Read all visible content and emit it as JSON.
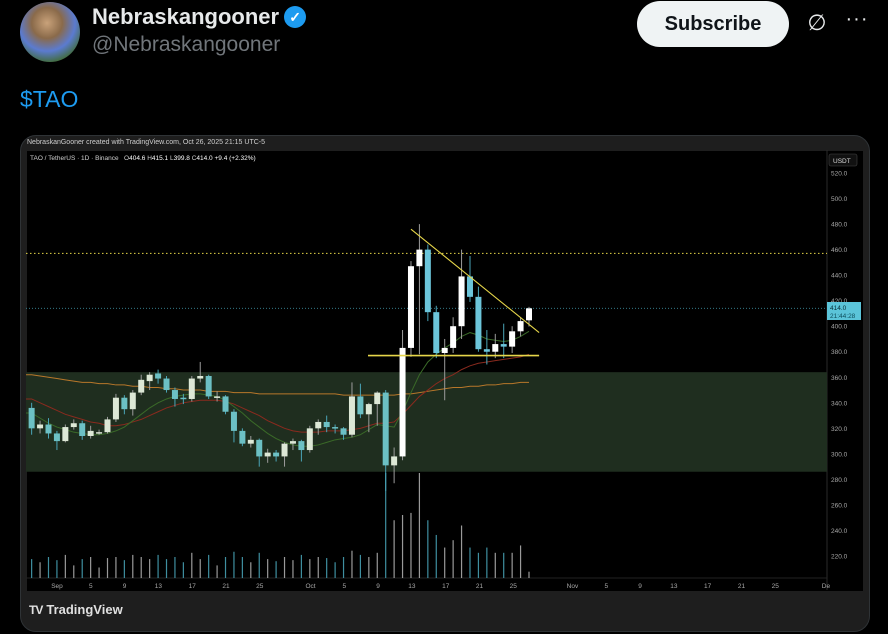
{
  "post": {
    "author_name": "Nebraskangooner",
    "verified": true,
    "handle": "@Nebraskangooner",
    "subscribe_label": "Subscribe",
    "text": "$TAO",
    "icons": {
      "verified": "verified-badge-icon",
      "grok": "grok-icon",
      "more": "more-icon"
    }
  },
  "card": {
    "credit": "NebraskanGooner created with TradingView.com, Oct 26, 2025 21:15 UTC-5",
    "brand": "TradingView"
  },
  "chart_data": {
    "type": "candlestick",
    "symbol_line": "TAO / TetherUS · 1D · Binance",
    "ohlc_readout": {
      "o": "404.6",
      "h": "415.1",
      "l": "399.8",
      "c": "414.0",
      "change": "+9.4 (+2.32%)"
    },
    "currency_label": "USDT",
    "last_price_label": "414.0",
    "countdown_label": "21:44:28",
    "ylim": [
      212,
      528
    ],
    "y_ticks": [
      "520.0",
      "500.0",
      "480.0",
      "460.0",
      "440.0",
      "420.0",
      "400.0",
      "380.0",
      "360.0",
      "340.0",
      "320.0",
      "300.0",
      "280.0",
      "260.0",
      "240.0",
      "220.0"
    ],
    "x_ticks": [
      "Sep",
      "5",
      "9",
      "13",
      "17",
      "21",
      "25",
      "Oct",
      "5",
      "9",
      "13",
      "17",
      "21",
      "25",
      "Nov",
      "5",
      "9",
      "13",
      "17",
      "21",
      "25",
      "De"
    ],
    "colors": {
      "up": "#ffffff",
      "down": "#6cc5da",
      "zone": "#1f2e1f",
      "trendlines": "#e6d64a",
      "last_price": "#5bc4d9"
    },
    "zone": [
      286,
      364
    ],
    "support_level": 377,
    "dotted_resistance": 457,
    "candles": [
      [
        336,
        340,
        315,
        320
      ],
      [
        320,
        326,
        316,
        323
      ],
      [
        323,
        328,
        312,
        316
      ],
      [
        316,
        318,
        303,
        310
      ],
      [
        310,
        323,
        309,
        321
      ],
      [
        321,
        327,
        319,
        324
      ],
      [
        324,
        326,
        311,
        314
      ],
      [
        314,
        322,
        312,
        318
      ],
      [
        317,
        319,
        315,
        317
      ],
      [
        317,
        329,
        316,
        327
      ],
      [
        327,
        347,
        325,
        344
      ],
      [
        344,
        346,
        331,
        335
      ],
      [
        335,
        350,
        330,
        348
      ],
      [
        348,
        362,
        346,
        358
      ],
      [
        357,
        364,
        350,
        362
      ],
      [
        363,
        366,
        355,
        359
      ],
      [
        359,
        361,
        348,
        350
      ],
      [
        350,
        352,
        337,
        343
      ],
      [
        344,
        347,
        339,
        343
      ],
      [
        343,
        361,
        341,
        359
      ],
      [
        359,
        372,
        356,
        361
      ],
      [
        361,
        362,
        343,
        345
      ],
      [
        345,
        349,
        341,
        345
      ],
      [
        345,
        346,
        331,
        333
      ],
      [
        333,
        335,
        309,
        318
      ],
      [
        318,
        320,
        306,
        308
      ],
      [
        308,
        314,
        305,
        311
      ],
      [
        311,
        312,
        290,
        298
      ],
      [
        298,
        304,
        293,
        301
      ],
      [
        301,
        303,
        294,
        298
      ],
      [
        298,
        309,
        290,
        308
      ],
      [
        308,
        312,
        303,
        310
      ],
      [
        310,
        311,
        294,
        303
      ],
      [
        303,
        322,
        301,
        320
      ],
      [
        320,
        327,
        315,
        325
      ],
      [
        325,
        330,
        317,
        321
      ],
      [
        321,
        323,
        316,
        320
      ],
      [
        320,
        321,
        311,
        315
      ],
      [
        315,
        356,
        313,
        345
      ],
      [
        345,
        355,
        328,
        331
      ],
      [
        331,
        340,
        317,
        339
      ],
      [
        339,
        349,
        322,
        348
      ],
      [
        348,
        350,
        271,
        291
      ],
      [
        291,
        305,
        277,
        298
      ],
      [
        298,
        397,
        295,
        383
      ],
      [
        383,
        451,
        376,
        447
      ],
      [
        447,
        480,
        378,
        460
      ],
      [
        460,
        464,
        404,
        411
      ],
      [
        411,
        416,
        375,
        379
      ],
      [
        379,
        390,
        342,
        383
      ],
      [
        383,
        407,
        379,
        400
      ],
      [
        400,
        460,
        390,
        439
      ],
      [
        439,
        455,
        419,
        423
      ],
      [
        423,
        431,
        380,
        382
      ],
      [
        382,
        397,
        370,
        380
      ],
      [
        380,
        394,
        375,
        386
      ],
      [
        386,
        402,
        375,
        384
      ],
      [
        384,
        400,
        379,
        396
      ],
      [
        396,
        407,
        392,
        404
      ],
      [
        404.6,
        415.1,
        399.8,
        414.0
      ]
    ],
    "volume_relative": [
      0.18,
      0.15,
      0.2,
      0.17,
      0.22,
      0.12,
      0.18,
      0.2,
      0.1,
      0.19,
      0.2,
      0.17,
      0.22,
      0.2,
      0.18,
      0.22,
      0.18,
      0.2,
      0.15,
      0.24,
      0.18,
      0.22,
      0.12,
      0.2,
      0.25,
      0.2,
      0.15,
      0.24,
      0.18,
      0.16,
      0.2,
      0.17,
      0.22,
      0.18,
      0.2,
      0.19,
      0.15,
      0.2,
      0.26,
      0.22,
      0.2,
      0.24,
      1.0,
      0.55,
      0.6,
      0.62,
      1.0,
      0.55,
      0.41,
      0.29,
      0.36,
      0.5,
      0.29,
      0.24,
      0.29,
      0.24,
      0.24,
      0.24,
      0.31,
      0.06
    ],
    "moving_averages": [
      {
        "color": "#b8772a",
        "values": [
          362,
          361,
          360,
          359,
          358,
          357,
          356,
          356,
          355,
          355,
          354,
          354,
          353,
          353,
          352,
          352,
          351,
          351,
          350,
          350,
          350,
          349,
          349,
          349,
          348,
          348,
          348,
          347,
          347,
          347,
          347,
          347,
          347,
          347,
          347,
          347,
          347,
          346,
          346,
          346,
          346,
          346,
          346,
          346,
          347,
          347,
          348,
          349,
          350,
          351,
          352,
          352,
          353,
          353,
          354,
          354,
          355,
          355,
          356,
          356
        ]
      },
      {
        "color": "#8a2a1e",
        "values": [
          343,
          340,
          337,
          334,
          331,
          329,
          327,
          325,
          324,
          322,
          322,
          323,
          325,
          327,
          330,
          333,
          336,
          338,
          340,
          341,
          342,
          342,
          342,
          341,
          339,
          336,
          333,
          330,
          326,
          323,
          320,
          318,
          317,
          317,
          317,
          318,
          318,
          318,
          319,
          320,
          322,
          324,
          324,
          325,
          331,
          338,
          345,
          350,
          355,
          359,
          362,
          366,
          369,
          371,
          372,
          373,
          374,
          375,
          376,
          378
        ]
      },
      {
        "color": "#3a6a28",
        "values": [
          332,
          328,
          324,
          321,
          319,
          317,
          316,
          315,
          315,
          316,
          318,
          321,
          326,
          331,
          336,
          340,
          343,
          345,
          346,
          347,
          347,
          346,
          345,
          342,
          337,
          332,
          326,
          321,
          316,
          312,
          309,
          307,
          306,
          306,
          307,
          309,
          311,
          312,
          313,
          315,
          319,
          323,
          322,
          321,
          333,
          348,
          362,
          372,
          378,
          383,
          387,
          392,
          395,
          393,
          390,
          389,
          388,
          389,
          392,
          396
        ]
      }
    ],
    "trendlines": [
      {
        "name": "descending",
        "from": {
          "index": 45,
          "price": 476
        },
        "to": {
          "index": 60.2,
          "price": 395
        }
      },
      {
        "name": "support",
        "from": {
          "index": 39.5,
          "price": 377
        },
        "to": {
          "index": 60.2,
          "price": 377
        }
      }
    ]
  }
}
